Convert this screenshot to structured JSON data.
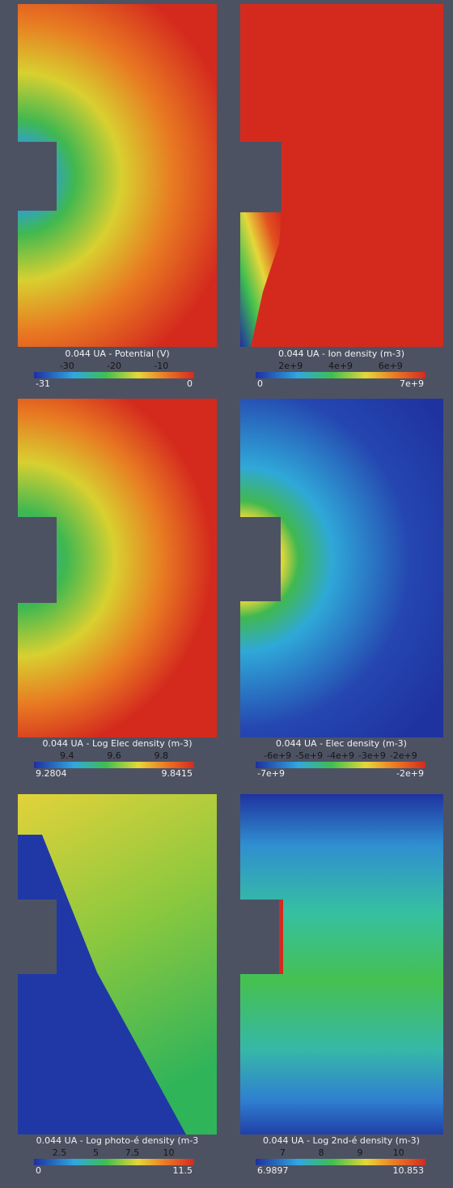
{
  "panels": [
    {
      "title": "0.044 UA - Potential (V)",
      "ticks": [
        "-30",
        "-20",
        "-10"
      ],
      "min": "-31",
      "max": "0"
    },
    {
      "title": "0.044 UA - Ion density (m-3)",
      "ticks": [
        "2e+9",
        "4e+9",
        "6e+9"
      ],
      "min": "0",
      "max": "7e+9"
    },
    {
      "title": "0.044 UA - Log Elec density (m-3)",
      "ticks": [
        "9.4",
        "9.6",
        "9.8"
      ],
      "min": "9.2804",
      "max": "9.8415"
    },
    {
      "title": "0.044 UA - Elec density (m-3)",
      "ticks": [
        "-6e+9",
        "-5e+9",
        "-4e+9",
        "-3e+9",
        "-2e+9"
      ],
      "min": "-7e+9",
      "max": "-2e+9"
    },
    {
      "title": "0.044 UA - Log photo-é density (m-3",
      "ticks": [
        "2.5",
        "5",
        "7.5",
        "10"
      ],
      "min": "0",
      "max": "11.5"
    },
    {
      "title": "0.044 UA - Log 2nd-é density (m-3)",
      "ticks": [
        "7",
        "8",
        "9",
        "10"
      ],
      "min": "6.9897",
      "max": "10.853"
    }
  ]
}
